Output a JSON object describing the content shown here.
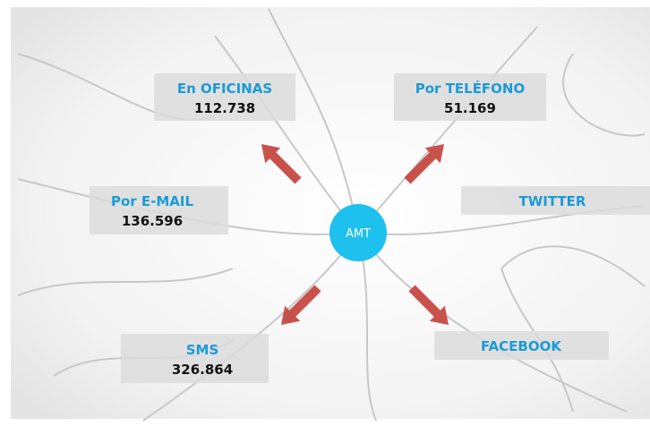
{
  "center": {
    "label": "AMT"
  },
  "nodes": [
    {
      "label": "En OFICINAS",
      "value": "112.738"
    },
    {
      "label": "Por TELÉFONO",
      "value": "51.169"
    },
    {
      "label": "Por E-MAIL",
      "value": "136.596"
    },
    {
      "label": "TWITTER"
    },
    {
      "label": "SMS",
      "value": "326.864"
    },
    {
      "label": "FACEBOOK"
    }
  ]
}
